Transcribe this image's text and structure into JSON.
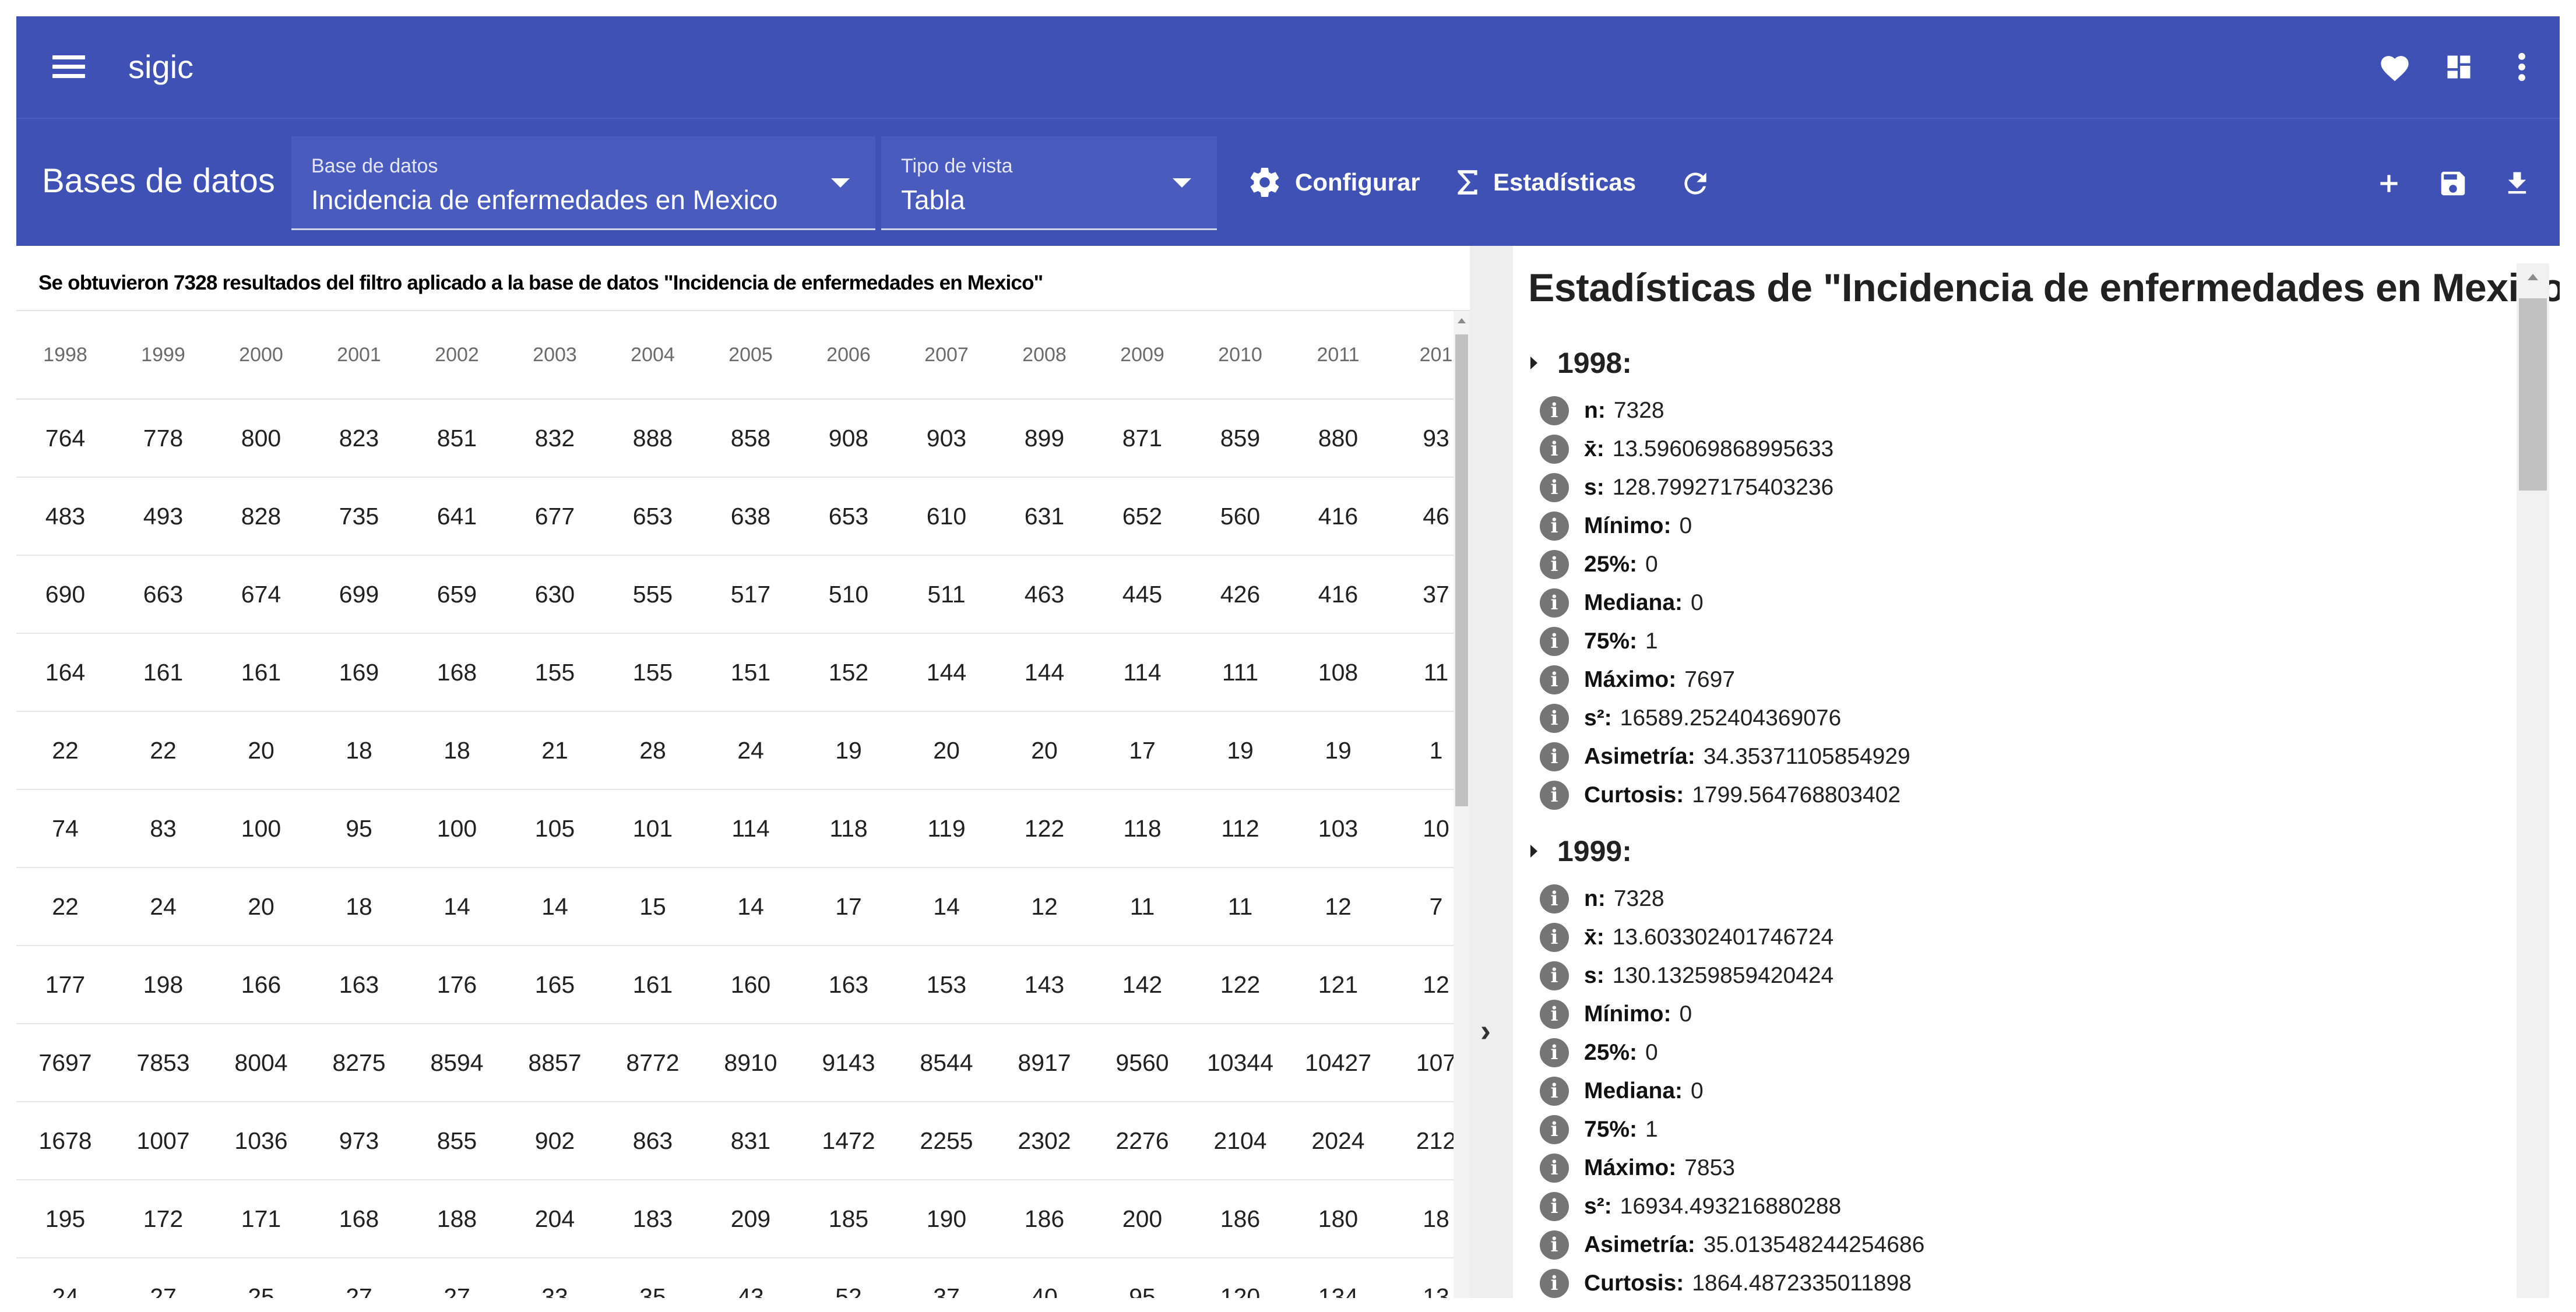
{
  "app": {
    "title": "sigic",
    "icons": [
      "menu-icon",
      "heart-icon",
      "dashboard-icon",
      "more-vert-icon"
    ]
  },
  "toolbar": {
    "section_title": "Bases de datos",
    "database_select": {
      "label": "Base de datos",
      "value": "Incidencia de enfermedades en Mexico"
    },
    "view_select": {
      "label": "Tipo de vista",
      "value": "Tabla"
    },
    "configure_label": "Configurar",
    "statistics_label": "Estadísticas",
    "icons": [
      "gear-icon",
      "sigma-icon",
      "refresh-icon",
      "add-icon",
      "save-icon",
      "download-icon"
    ]
  },
  "result_message": "Se obtuvieron 7328 resultados del filtro aplicado a la base de datos \"Incidencia de enfermedades en Mexico\"",
  "table": {
    "headers": [
      "1998",
      "1999",
      "2000",
      "2001",
      "2002",
      "2003",
      "2004",
      "2005",
      "2006",
      "2007",
      "2008",
      "2009",
      "2010",
      "2011",
      "201"
    ],
    "rows": [
      [
        "764",
        "778",
        "800",
        "823",
        "851",
        "832",
        "888",
        "858",
        "908",
        "903",
        "899",
        "871",
        "859",
        "880",
        "93"
      ],
      [
        "483",
        "493",
        "828",
        "735",
        "641",
        "677",
        "653",
        "638",
        "653",
        "610",
        "631",
        "652",
        "560",
        "416",
        "46"
      ],
      [
        "690",
        "663",
        "674",
        "699",
        "659",
        "630",
        "555",
        "517",
        "510",
        "511",
        "463",
        "445",
        "426",
        "416",
        "37"
      ],
      [
        "164",
        "161",
        "161",
        "169",
        "168",
        "155",
        "155",
        "151",
        "152",
        "144",
        "144",
        "114",
        "111",
        "108",
        "11"
      ],
      [
        "22",
        "22",
        "20",
        "18",
        "18",
        "21",
        "28",
        "24",
        "19",
        "20",
        "20",
        "17",
        "19",
        "19",
        "1"
      ],
      [
        "74",
        "83",
        "100",
        "95",
        "100",
        "105",
        "101",
        "114",
        "118",
        "119",
        "122",
        "118",
        "112",
        "103",
        "10"
      ],
      [
        "22",
        "24",
        "20",
        "18",
        "14",
        "14",
        "15",
        "14",
        "17",
        "14",
        "12",
        "11",
        "11",
        "12",
        "7"
      ],
      [
        "177",
        "198",
        "166",
        "163",
        "176",
        "165",
        "161",
        "160",
        "163",
        "153",
        "143",
        "142",
        "122",
        "121",
        "12"
      ],
      [
        "7697",
        "7853",
        "8004",
        "8275",
        "8594",
        "8857",
        "8772",
        "8910",
        "9143",
        "8544",
        "8917",
        "9560",
        "10344",
        "10427",
        "107"
      ],
      [
        "1678",
        "1007",
        "1036",
        "973",
        "855",
        "902",
        "863",
        "831",
        "1472",
        "2255",
        "2302",
        "2276",
        "2104",
        "2024",
        "212"
      ],
      [
        "195",
        "172",
        "171",
        "168",
        "188",
        "204",
        "183",
        "209",
        "185",
        "190",
        "186",
        "200",
        "186",
        "180",
        "18"
      ],
      [
        "24",
        "27",
        "25",
        "27",
        "27",
        "33",
        "35",
        "43",
        "52",
        "37",
        "40",
        "95",
        "120",
        "134",
        "13"
      ]
    ]
  },
  "splitter": {
    "icon": "chevron-right-icon"
  },
  "stats": {
    "title": "Estadísticas de \"Incidencia de enfermedades en Mexico\"",
    "groups": [
      {
        "year": "1998:",
        "items": [
          {
            "label": "n:",
            "value": "7328"
          },
          {
            "label": "x̄:",
            "value": "13.596069868995633"
          },
          {
            "label": "s:",
            "value": "128.79927175403236"
          },
          {
            "label": "Mínimo:",
            "value": "0"
          },
          {
            "label": "25%:",
            "value": "0"
          },
          {
            "label": "Mediana:",
            "value": "0"
          },
          {
            "label": "75%:",
            "value": "1"
          },
          {
            "label": "Máximo:",
            "value": "7697"
          },
          {
            "label": "s²:",
            "value": "16589.252404369076"
          },
          {
            "label": "Asimetría:",
            "value": "34.35371105854929"
          },
          {
            "label": "Curtosis:",
            "value": "1799.564768803402"
          }
        ]
      },
      {
        "year": "1999:",
        "items": [
          {
            "label": "n:",
            "value": "7328"
          },
          {
            "label": "x̄:",
            "value": "13.603302401746724"
          },
          {
            "label": "s:",
            "value": "130.13259859420424"
          },
          {
            "label": "Mínimo:",
            "value": "0"
          },
          {
            "label": "25%:",
            "value": "0"
          },
          {
            "label": "Mediana:",
            "value": "0"
          },
          {
            "label": "75%:",
            "value": "1"
          },
          {
            "label": "Máximo:",
            "value": "7853"
          },
          {
            "label": "s²:",
            "value": "16934.493216880288"
          },
          {
            "label": "Asimetría:",
            "value": "35.013548244254686"
          },
          {
            "label": "Curtosis:",
            "value": "1864.4872335011898"
          }
        ]
      }
    ]
  },
  "colors": {
    "primary": "#3f51b5",
    "info_icon": "#757575"
  }
}
